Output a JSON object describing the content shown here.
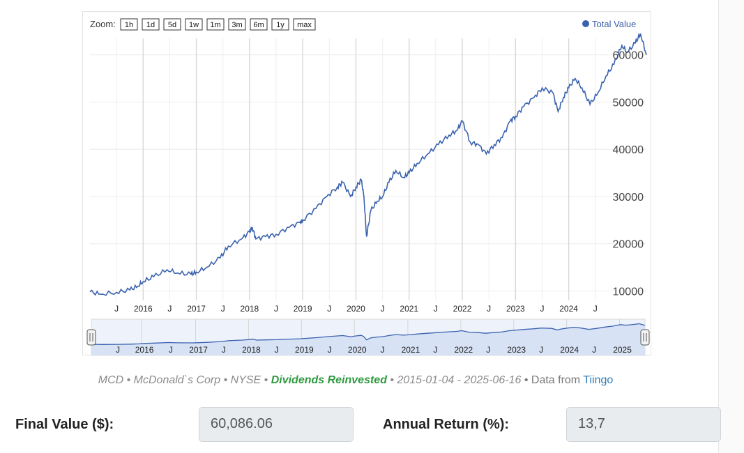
{
  "chart_data": {
    "type": "line",
    "zoom_label": "Zoom:",
    "zoom_buttons": [
      "1h",
      "1d",
      "5d",
      "1w",
      "1m",
      "3m",
      "6m",
      "1y",
      "max"
    ],
    "legend": "Total Value",
    "series": [
      {
        "name": "Total Value",
        "color": "#3a62ae",
        "points": [
          [
            2015.0,
            9800
          ],
          [
            2015.2,
            9300
          ],
          [
            2015.5,
            9700
          ],
          [
            2015.75,
            10200
          ],
          [
            2015.9,
            11000
          ],
          [
            2016.0,
            12000
          ],
          [
            2016.2,
            13000
          ],
          [
            2016.45,
            14500
          ],
          [
            2016.65,
            13800
          ],
          [
            2016.9,
            13500
          ],
          [
            2017.0,
            14000
          ],
          [
            2017.2,
            15000
          ],
          [
            2017.45,
            17000
          ],
          [
            2017.6,
            19500
          ],
          [
            2017.85,
            21000
          ],
          [
            2018.0,
            22500
          ],
          [
            2018.05,
            23500
          ],
          [
            2018.12,
            21000
          ],
          [
            2018.3,
            21500
          ],
          [
            2018.5,
            22000
          ],
          [
            2018.75,
            23500
          ],
          [
            2018.95,
            24500
          ],
          [
            2019.0,
            25000
          ],
          [
            2019.25,
            27500
          ],
          [
            2019.45,
            30000
          ],
          [
            2019.65,
            32000
          ],
          [
            2019.75,
            33000
          ],
          [
            2019.9,
            30000
          ],
          [
            2020.0,
            32000
          ],
          [
            2020.1,
            33500
          ],
          [
            2020.15,
            30000
          ],
          [
            2020.2,
            21500
          ],
          [
            2020.28,
            27000
          ],
          [
            2020.4,
            29000
          ],
          [
            2020.5,
            30000
          ],
          [
            2020.62,
            33000
          ],
          [
            2020.75,
            35500
          ],
          [
            2020.9,
            34000
          ],
          [
            2021.0,
            35000
          ],
          [
            2021.15,
            37000
          ],
          [
            2021.35,
            39000
          ],
          [
            2021.55,
            41000
          ],
          [
            2021.75,
            43000
          ],
          [
            2021.9,
            44000
          ],
          [
            2022.0,
            46000
          ],
          [
            2022.15,
            41500
          ],
          [
            2022.3,
            41000
          ],
          [
            2022.45,
            39000
          ],
          [
            2022.6,
            41000
          ],
          [
            2022.75,
            42500
          ],
          [
            2022.9,
            46000
          ],
          [
            2023.0,
            47000
          ],
          [
            2023.15,
            49000
          ],
          [
            2023.35,
            51000
          ],
          [
            2023.5,
            53000
          ],
          [
            2023.7,
            52000
          ],
          [
            2023.8,
            48000
          ],
          [
            2023.9,
            51000
          ],
          [
            2024.0,
            53000
          ],
          [
            2024.12,
            55000
          ],
          [
            2024.25,
            53000
          ],
          [
            2024.4,
            49500
          ],
          [
            2024.55,
            52000
          ],
          [
            2024.7,
            55500
          ],
          [
            2024.85,
            58000
          ],
          [
            2025.0,
            62000
          ],
          [
            2025.1,
            60500
          ],
          [
            2025.25,
            62500
          ],
          [
            2025.35,
            64500
          ],
          [
            2025.46,
            60000
          ]
        ]
      }
    ],
    "xlim": [
      2015.0,
      2025.46
    ],
    "ylim": [
      8000,
      63500
    ],
    "yticks": [
      10000,
      20000,
      30000,
      40000,
      50000,
      60000
    ],
    "x_ticks": [
      {
        "label": "J",
        "x": 2015.5
      },
      {
        "label": "2016",
        "x": 2016.0
      },
      {
        "label": "J",
        "x": 2016.5
      },
      {
        "label": "2017",
        "x": 2017.0
      },
      {
        "label": "J",
        "x": 2017.5
      },
      {
        "label": "2018",
        "x": 2018.0
      },
      {
        "label": "J",
        "x": 2018.5
      },
      {
        "label": "2019",
        "x": 2019.0
      },
      {
        "label": "J",
        "x": 2019.5
      },
      {
        "label": "2020",
        "x": 2020.0
      },
      {
        "label": "J",
        "x": 2020.5
      },
      {
        "label": "2021",
        "x": 2021.0
      },
      {
        "label": "J",
        "x": 2021.5
      },
      {
        "label": "2022",
        "x": 2022.0
      },
      {
        "label": "J",
        "x": 2022.5
      },
      {
        "label": "2023",
        "x": 2023.0
      },
      {
        "label": "J",
        "x": 2023.5
      },
      {
        "label": "2024",
        "x": 2024.0
      },
      {
        "label": "J",
        "x": 2024.5
      }
    ],
    "navigator_ticks": [
      {
        "label": "J",
        "x": 2015.5
      },
      {
        "label": "2016",
        "x": 2015.95
      },
      {
        "label": "J",
        "x": 2016.5
      },
      {
        "label": "2017",
        "x": 2016.97
      },
      {
        "label": "J",
        "x": 2017.5
      },
      {
        "label": "2018",
        "x": 2017.97
      },
      {
        "label": "J",
        "x": 2018.5
      },
      {
        "label": "2019",
        "x": 2018.97
      },
      {
        "label": "J",
        "x": 2019.5
      },
      {
        "label": "2020",
        "x": 2019.97
      },
      {
        "label": "J",
        "x": 2020.5
      },
      {
        "label": "2021",
        "x": 2020.98
      },
      {
        "label": "J",
        "x": 2021.5
      },
      {
        "label": "2022",
        "x": 2021.98
      },
      {
        "label": "J",
        "x": 2022.5
      },
      {
        "label": "2023",
        "x": 2022.98
      },
      {
        "label": "J",
        "x": 2023.5
      },
      {
        "label": "2024",
        "x": 2023.98
      },
      {
        "label": "J",
        "x": 2024.5
      },
      {
        "label": "2025",
        "x": 2024.98
      }
    ],
    "grid": true
  },
  "caption": {
    "prefix": "MCD • McDonald`s Corp • NYSE • ",
    "reinvested": "Dividends Reinvested",
    "middle": " •  2015-01-04 - 2025-06-16",
    "data_from": " • Data from ",
    "source": "Tiingo"
  },
  "results": {
    "final_value_label": "Final Value ($):",
    "final_value": "60,086.06",
    "annual_return_label": "Annual Return (%):",
    "annual_return": "13,7"
  }
}
